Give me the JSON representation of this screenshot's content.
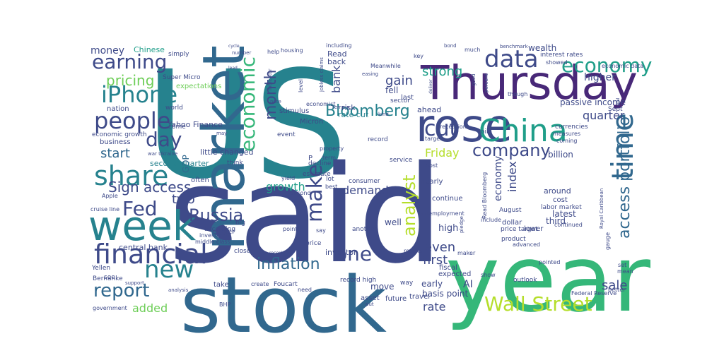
{
  "palette": {
    "deep_purple": "#482878",
    "indigo": "#3e4a89",
    "blue": "#31688e",
    "teal": "#26828e",
    "green_teal": "#1f9e89",
    "green": "#35b779",
    "light_green": "#6ece58",
    "lime": "#b5de2b",
    "dark": "#440154"
  },
  "words": [
    {
      "text": "US"
    },
    {
      "text": "said"
    },
    {
      "text": "year"
    },
    {
      "text": "stock"
    },
    {
      "text": "market"
    },
    {
      "text": "Thursday"
    },
    {
      "text": "rose"
    },
    {
      "text": "week"
    },
    {
      "text": "financial"
    },
    {
      "text": "China"
    },
    {
      "text": "share"
    },
    {
      "text": "iPhone"
    },
    {
      "text": "people"
    },
    {
      "text": "economic"
    },
    {
      "text": "time"
    },
    {
      "text": "data"
    },
    {
      "text": "earning"
    },
    {
      "text": "economy"
    },
    {
      "text": "company"
    },
    {
      "text": "Fed"
    },
    {
      "text": "new"
    },
    {
      "text": "report"
    },
    {
      "text": "Wall Street"
    },
    {
      "text": "cut"
    },
    {
      "text": "day"
    },
    {
      "text": "Russia"
    },
    {
      "text": "inflation"
    },
    {
      "text": "one"
    },
    {
      "text": "Bloomberg"
    },
    {
      "text": "make"
    },
    {
      "text": "month"
    },
    {
      "text": "analyst"
    },
    {
      "text": "access portfolio"
    },
    {
      "text": "Sign access"
    },
    {
      "text": "pricing"
    },
    {
      "text": "money"
    },
    {
      "text": "strong"
    },
    {
      "text": "gain"
    },
    {
      "text": "Friday"
    },
    {
      "text": "demand"
    },
    {
      "text": "growth"
    },
    {
      "text": "sale"
    },
    {
      "text": "start"
    },
    {
      "text": "quarter"
    },
    {
      "text": "first"
    },
    {
      "text": "even"
    },
    {
      "text": "rate"
    },
    {
      "text": "added"
    },
    {
      "text": "two"
    },
    {
      "text": "bank"
    },
    {
      "text": "index"
    },
    {
      "text": "economy"
    },
    {
      "text": "Chinese"
    },
    {
      "text": "passive income"
    },
    {
      "text": "higher"
    },
    {
      "text": "GDP"
    },
    {
      "text": "rate cut"
    },
    {
      "text": "risk"
    },
    {
      "text": "fell"
    },
    {
      "text": "AI"
    },
    {
      "text": "basis point"
    },
    {
      "text": "central bank"
    },
    {
      "text": "Yahoo Finance"
    },
    {
      "text": "second quarter"
    },
    {
      "text": "little changed"
    },
    {
      "text": "around"
    },
    {
      "text": "latest"
    },
    {
      "text": "third"
    },
    {
      "text": "billion"
    },
    {
      "text": "economic growth"
    },
    {
      "text": "business"
    },
    {
      "text": "high"
    },
    {
      "text": "well"
    },
    {
      "text": "stimulus"
    },
    {
      "text": "ahead"
    },
    {
      "text": "expected"
    },
    {
      "text": "early"
    },
    {
      "text": "move"
    },
    {
      "text": "investor"
    },
    {
      "text": "nation"
    },
    {
      "text": "Super Micro"
    },
    {
      "text": "expectations"
    },
    {
      "text": "Micron"
    },
    {
      "text": "wealth"
    },
    {
      "text": "interest rates"
    },
    {
      "text": "last"
    },
    {
      "text": "sector"
    },
    {
      "text": "Read"
    },
    {
      "text": "back"
    },
    {
      "text": "economic data"
    },
    {
      "text": "Meanwhile"
    },
    {
      "text": "simply"
    },
    {
      "text": "world"
    },
    {
      "text": "come"
    },
    {
      "text": "earlier"
    },
    {
      "text": "often"
    },
    {
      "text": "according"
    },
    {
      "text": "investment"
    },
    {
      "text": "middle class"
    },
    {
      "text": "government"
    },
    {
      "text": "Bernanke"
    },
    {
      "text": "Yellen"
    },
    {
      "text": "cruise line"
    },
    {
      "text": "Apple"
    },
    {
      "text": "Foucart"
    },
    {
      "text": "take"
    },
    {
      "text": "close"
    },
    {
      "text": "create"
    },
    {
      "text": "need"
    },
    {
      "text": "price"
    },
    {
      "text": "asset"
    },
    {
      "text": "future"
    },
    {
      "text": "fiscal"
    },
    {
      "text": "travel"
    },
    {
      "text": "record high"
    },
    {
      "text": "way"
    },
    {
      "text": "next"
    },
    {
      "text": "results"
    },
    {
      "text": "maker"
    },
    {
      "text": "outlook"
    },
    {
      "text": "show"
    },
    {
      "text": "advanced"
    },
    {
      "text": "product"
    },
    {
      "text": "dollar"
    },
    {
      "text": "lower"
    },
    {
      "text": "continued"
    },
    {
      "text": "set"
    },
    {
      "text": "mean"
    },
    {
      "text": "better"
    },
    {
      "text": "Federal Reserve"
    },
    {
      "text": "pointed"
    },
    {
      "text": "labor market"
    },
    {
      "text": "cost"
    },
    {
      "text": "Royal Caribbean"
    },
    {
      "text": "August"
    },
    {
      "text": "unemployment"
    },
    {
      "text": "continue"
    },
    {
      "text": "nearly"
    },
    {
      "text": "Read Bloomberg"
    },
    {
      "text": "include"
    },
    {
      "text": "consumer"
    },
    {
      "text": "service"
    },
    {
      "text": "boost"
    },
    {
      "text": "estimate"
    },
    {
      "text": "lot"
    },
    {
      "text": "best"
    },
    {
      "text": "second"
    },
    {
      "text": "yield"
    },
    {
      "text": "decline"
    },
    {
      "text": "property"
    },
    {
      "text": "term"
    },
    {
      "text": "record"
    },
    {
      "text": "event"
    },
    {
      "text": "target"
    },
    {
      "text": "recession"
    },
    {
      "text": "oil"
    },
    {
      "text": "currencies"
    },
    {
      "text": "measures"
    },
    {
      "text": "coming"
    },
    {
      "text": "Sept"
    },
    {
      "text": "economist"
    },
    {
      "text": "including"
    },
    {
      "text": "jobless claims"
    },
    {
      "text": "housing"
    },
    {
      "text": "help"
    },
    {
      "text": "number"
    },
    {
      "text": "cycle"
    },
    {
      "text": "lead"
    },
    {
      "text": "bond"
    },
    {
      "text": "much"
    },
    {
      "text": "key"
    },
    {
      "text": "benchmark"
    },
    {
      "text": "showed"
    },
    {
      "text": "easing"
    },
    {
      "text": "good"
    },
    {
      "text": "indicator"
    },
    {
      "text": "level"
    },
    {
      "text": "note"
    },
    {
      "text": "remain"
    },
    {
      "text": "kind"
    },
    {
      "text": "think"
    },
    {
      "text": "war Ukraine"
    },
    {
      "text": "may"
    },
    {
      "text": "big"
    },
    {
      "text": "see"
    },
    {
      "text": "support"
    },
    {
      "text": "analysis"
    },
    {
      "text": "BHP"
    },
    {
      "text": "pledge"
    },
    {
      "text": "another"
    },
    {
      "text": "say"
    },
    {
      "text": "point"
    },
    {
      "text": "price target"
    },
    {
      "text": "though"
    },
    {
      "text": "gauge"
    },
    {
      "text": "P"
    },
    {
      "text": "recent"
    },
    {
      "text": "put"
    },
    {
      "text": "percent"
    },
    {
      "text": "deliver"
    },
    {
      "text": "real"
    }
  ]
}
